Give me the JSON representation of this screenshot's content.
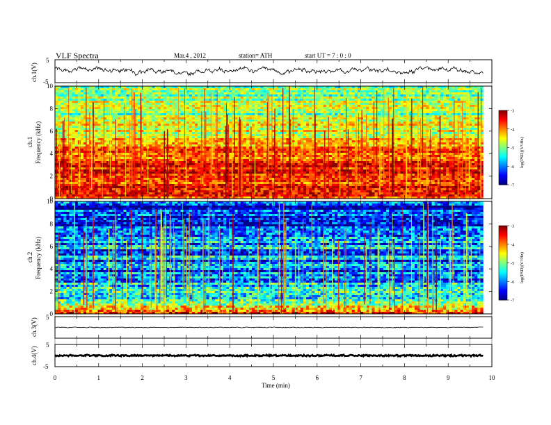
{
  "header": {
    "title": "VLF  Spectra",
    "date": "Mar.4   , 2012",
    "station": "station= ATH",
    "start": "start  UT  =    7  : 0  : 0"
  },
  "axes": {
    "xlabel": "Time  (min)",
    "ch1_wave_label": "ch.1(V)",
    "ch1_spec_label": "ch.1",
    "ch2_spec_label": "ch.2",
    "freq_label": "Frequency  (kHz)",
    "ch3_wave_label": "ch.3(V)",
    "ch4_wave_label": "ch.4(V)",
    "colorbar_label": "log(PSD)(V²/Hz)"
  },
  "chart_data": [
    {
      "type": "line",
      "name": "ch1-waveform",
      "x_range": [
        0,
        10
      ],
      "data_extent_min": 9.8,
      "ylim": [
        -5,
        5
      ],
      "y_ticks": [
        "5",
        "-5"
      ],
      "description_levels": {
        "mean": 0.3,
        "range": [
          -2,
          2
        ]
      }
    },
    {
      "type": "heatmap",
      "name": "ch1-spectrogram",
      "x_range": [
        0,
        10
      ],
      "ylim": [
        0,
        10
      ],
      "y_ticks": [
        "0",
        "2",
        "4",
        "6",
        "8",
        "10"
      ],
      "x_ticks": [
        "0",
        "1",
        "2",
        "3",
        "4",
        "5",
        "6",
        "7",
        "8",
        "9",
        "10"
      ],
      "colorbar": {
        "range": [
          -7,
          -3
        ],
        "ticks": [
          "-3",
          "-4",
          "-5",
          "-6",
          "-7"
        ]
      },
      "logpsd_profile": [
        {
          "freq_khz": 0.5,
          "logpsd": -3.6
        },
        {
          "freq_khz": 1.5,
          "logpsd": -3.5
        },
        {
          "freq_khz": 2.5,
          "logpsd": -3.6
        },
        {
          "freq_khz": 3.5,
          "logpsd": -3.9
        },
        {
          "freq_khz": 4.5,
          "logpsd": -4.1
        },
        {
          "freq_khz": 5.5,
          "logpsd": -4.6
        },
        {
          "freq_khz": 6.5,
          "logpsd": -4.8
        },
        {
          "freq_khz": 7.5,
          "logpsd": -4.9
        },
        {
          "freq_khz": 8.5,
          "logpsd": -4.9
        },
        {
          "freq_khz": 9.5,
          "logpsd": -4.9
        }
      ]
    },
    {
      "type": "heatmap",
      "name": "ch2-spectrogram",
      "x_range": [
        0,
        10
      ],
      "ylim": [
        0,
        10
      ],
      "y_ticks": [
        "0",
        "2",
        "4",
        "6",
        "8",
        "10"
      ],
      "x_ticks": [
        "0",
        "1",
        "2",
        "3",
        "4",
        "5",
        "6",
        "7",
        "8",
        "9",
        "10"
      ],
      "colorbar": {
        "range": [
          -7,
          -3
        ],
        "ticks": [
          "-3",
          "-4",
          "-5",
          "-6",
          "-7"
        ]
      },
      "logpsd_profile": [
        {
          "freq_khz": 0.5,
          "logpsd": -4.2
        },
        {
          "freq_khz": 1.5,
          "logpsd": -5.3
        },
        {
          "freq_khz": 2.5,
          "logpsd": -5.8
        },
        {
          "freq_khz": 3.5,
          "logpsd": -6.2
        },
        {
          "freq_khz": 4.5,
          "logpsd": -6.1
        },
        {
          "freq_khz": 5.5,
          "logpsd": -5.9
        },
        {
          "freq_khz": 6.5,
          "logpsd": -6.0
        },
        {
          "freq_khz": 7.5,
          "logpsd": -6.3
        },
        {
          "freq_khz": 8.5,
          "logpsd": -6.4
        },
        {
          "freq_khz": 9.5,
          "logpsd": -6.5
        }
      ]
    },
    {
      "type": "line",
      "name": "ch3-waveform",
      "x_range": [
        0,
        10
      ],
      "ylim": [
        -5,
        5
      ],
      "y_ticks": [
        "5"
      ],
      "description_levels": {
        "mean": 0.0,
        "range": [
          -0.2,
          0.2
        ]
      }
    },
    {
      "type": "line",
      "name": "ch4-waveform",
      "x_range": [
        0,
        10
      ],
      "ylim": [
        -5,
        5
      ],
      "y_ticks": [
        "5",
        "-5"
      ],
      "description_levels": {
        "mean": 0.0,
        "range": [
          -0.4,
          0.4
        ]
      }
    }
  ],
  "x_ticks": [
    "0",
    "1",
    "2",
    "3",
    "4",
    "5",
    "6",
    "7",
    "8",
    "9",
    "10"
  ]
}
